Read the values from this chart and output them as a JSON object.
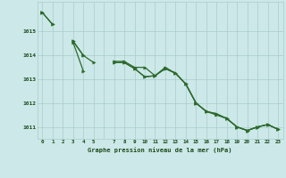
{
  "hours": [
    0,
    1,
    2,
    3,
    4,
    5,
    6,
    7,
    8,
    9,
    10,
    11,
    12,
    13,
    14,
    15,
    16,
    17,
    18,
    19,
    20,
    21,
    22,
    23
  ],
  "series1": [
    1015.8,
    1015.3,
    null,
    1014.6,
    1014.0,
    1013.7,
    null,
    1013.7,
    1013.7,
    1013.45,
    1013.1,
    1013.15,
    1013.45,
    1013.25,
    1012.8,
    1012.0,
    1011.65,
    1011.55,
    1011.35,
    1011.0,
    1010.85,
    1011.0,
    1011.1,
    1010.9
  ],
  "series2": [
    1015.8,
    1015.3,
    null,
    1014.6,
    1014.0,
    null,
    null,
    1013.7,
    1013.7,
    1013.45,
    1013.1,
    1013.15,
    1013.45,
    1013.25,
    1012.8,
    1012.0,
    1011.65,
    1011.55,
    1011.35,
    1011.0,
    1010.85,
    1011.0,
    1011.1,
    1010.9
  ],
  "series3": [
    1015.8,
    null,
    null,
    1014.55,
    1013.35,
    null,
    null,
    1013.75,
    1013.75,
    1013.5,
    1013.5,
    1013.15,
    1013.5,
    1013.25,
    1012.8,
    1012.0,
    1011.65,
    1011.5,
    1011.35,
    1011.0,
    1010.85,
    1011.0,
    1011.1,
    1010.9
  ],
  "line_color": "#2d6a2d",
  "bg_color": "#cce8e8",
  "grid_color": "#aacccc",
  "text_color": "#1a4a1a",
  "xlabel_text": "Graphe pression niveau de la mer (hPa)",
  "ylim": [
    1010.5,
    1016.25
  ],
  "yticks": [
    1011,
    1012,
    1013,
    1014,
    1015
  ],
  "xtick_labels": [
    "0",
    "1",
    "2",
    "3",
    "4",
    "5",
    "",
    "7",
    "8",
    "9",
    "10",
    "11",
    "12",
    "13",
    "14",
    "15",
    "16",
    "17",
    "18",
    "19",
    "20",
    "21",
    "22",
    "23"
  ],
  "marker_size": 2.5,
  "linewidth": 0.9
}
